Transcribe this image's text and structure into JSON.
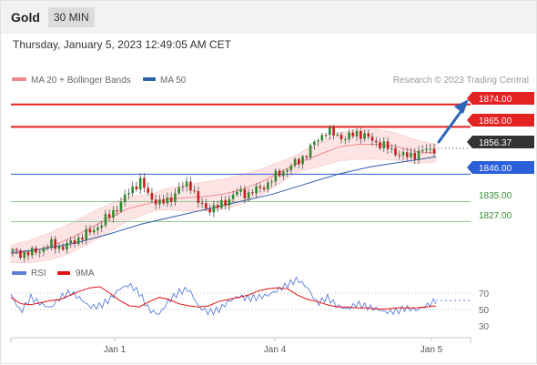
{
  "header": {
    "title": "Gold",
    "timeframe": "30 MIN"
  },
  "datetime": "Thursday, January 5, 2023 12:49:05 AM CET",
  "legend": {
    "ma20_label": "MA 20 + Bollinger Bands",
    "ma50_label": "MA 50",
    "copyright": "Research © 2023 Trading Central",
    "rsi_label": "RSI",
    "rsi_ma_label": "9MA"
  },
  "colors": {
    "resistance": "#e32222",
    "pivot": "#2b5fd9",
    "support": "#2f8f2f",
    "current": "#333333",
    "ma20": "#f08a8a",
    "ma50": "#2e5fa8",
    "bollinger_fill": "#fde4e4",
    "candle_up": "#2e8b2e",
    "candle_down": "#c81e1e",
    "rsi": "#5b7fd8",
    "rsi_ma": "#e31010",
    "arrow": "#2e66b8"
  },
  "levels": {
    "r2": "1874.00",
    "r1": "1865.00",
    "current": "1856.37",
    "pivot": "1846.00",
    "s1": "1835.00",
    "s2": "1827.00"
  },
  "x_axis": {
    "labels": [
      "Jan 1",
      "Jan 4",
      "Jan 5"
    ]
  },
  "rsi_axis": {
    "ticks": [
      "70",
      "50",
      "30"
    ]
  },
  "chart_data": [
    {
      "type": "line",
      "title": "Gold 30 MIN",
      "x_ticks": [
        "Jan 1",
        "Jan 4",
        "Jan 5"
      ],
      "ylim": [
        1814,
        1879
      ],
      "series": [
        {
          "name": "Gold",
          "values": [
            1815,
            1814,
            1814.5,
            1816,
            1818,
            1816.5,
            1818.5,
            1821,
            1823,
            1826,
            1830,
            1834,
            1840,
            1843,
            1837,
            1834,
            1836,
            1840,
            1843,
            1834,
            1832,
            1833,
            1836,
            1839,
            1838,
            1840,
            1842,
            1846,
            1848,
            1851,
            1854,
            1860,
            1863,
            1862,
            1860,
            1863,
            1861,
            1859,
            1857,
            1855,
            1853,
            1854,
            1855.5,
            1856.37
          ]
        },
        {
          "name": "MA 20",
          "values": [
            1814,
            1815,
            1817,
            1820,
            1824,
            1828,
            1832,
            1834,
            1836,
            1836.5,
            1837,
            1838,
            1840,
            1843,
            1847,
            1851,
            1854,
            1857,
            1858,
            1858,
            1857,
            1855,
            1854.5
          ]
        },
        {
          "name": "MA 50",
          "values": [
            1814.5,
            1816,
            1818.5,
            1822,
            1826,
            1829,
            1832,
            1835,
            1838,
            1842,
            1846,
            1849,
            1851,
            1853
          ]
        }
      ],
      "horizontal_levels": [
        {
          "label": "1874.00",
          "value": 1874,
          "kind": "resistance"
        },
        {
          "label": "1865.00",
          "value": 1865,
          "kind": "resistance"
        },
        {
          "label": "1856.37",
          "value": 1856.37,
          "kind": "last price"
        },
        {
          "label": "1846.00",
          "value": 1846,
          "kind": "pivot"
        },
        {
          "label": "1835.00",
          "value": 1835,
          "kind": "support"
        },
        {
          "label": "1827.00",
          "value": 1827,
          "kind": "support"
        }
      ],
      "legend": [
        "MA 20 + Bollinger Bands",
        "MA 50"
      ],
      "legend_position": "top-left",
      "annotation": "arrow pointing up toward 1874.00"
    },
    {
      "type": "line",
      "title": "RSI",
      "ylim": [
        20,
        80
      ],
      "y_ticks": [
        70,
        50,
        30
      ],
      "series": [
        {
          "name": "RSI",
          "values": [
            61,
            44,
            58,
            52,
            48,
            58,
            63,
            57,
            49,
            50,
            56,
            66,
            70,
            62,
            46,
            42,
            55,
            63,
            66,
            49,
            44,
            46,
            54,
            59,
            57,
            58,
            60,
            65,
            70,
            75,
            67,
            52,
            58,
            50,
            47,
            52,
            49,
            47,
            44,
            45,
            48,
            46,
            50,
            55
          ]
        },
        {
          "name": "9MA",
          "values": [
            58,
            52,
            51,
            53,
            55,
            56,
            60,
            64,
            67,
            68,
            62,
            55,
            50,
            49,
            54,
            58,
            56,
            52,
            50,
            49,
            50,
            54,
            56,
            58,
            60,
            64,
            66,
            67,
            66,
            60,
            56,
            54,
            51,
            49,
            49,
            48,
            48,
            47,
            47,
            48,
            48,
            48,
            49,
            50
          ]
        }
      ],
      "legend": [
        "RSI",
        "9MA"
      ],
      "legend_position": "top-left"
    }
  ]
}
